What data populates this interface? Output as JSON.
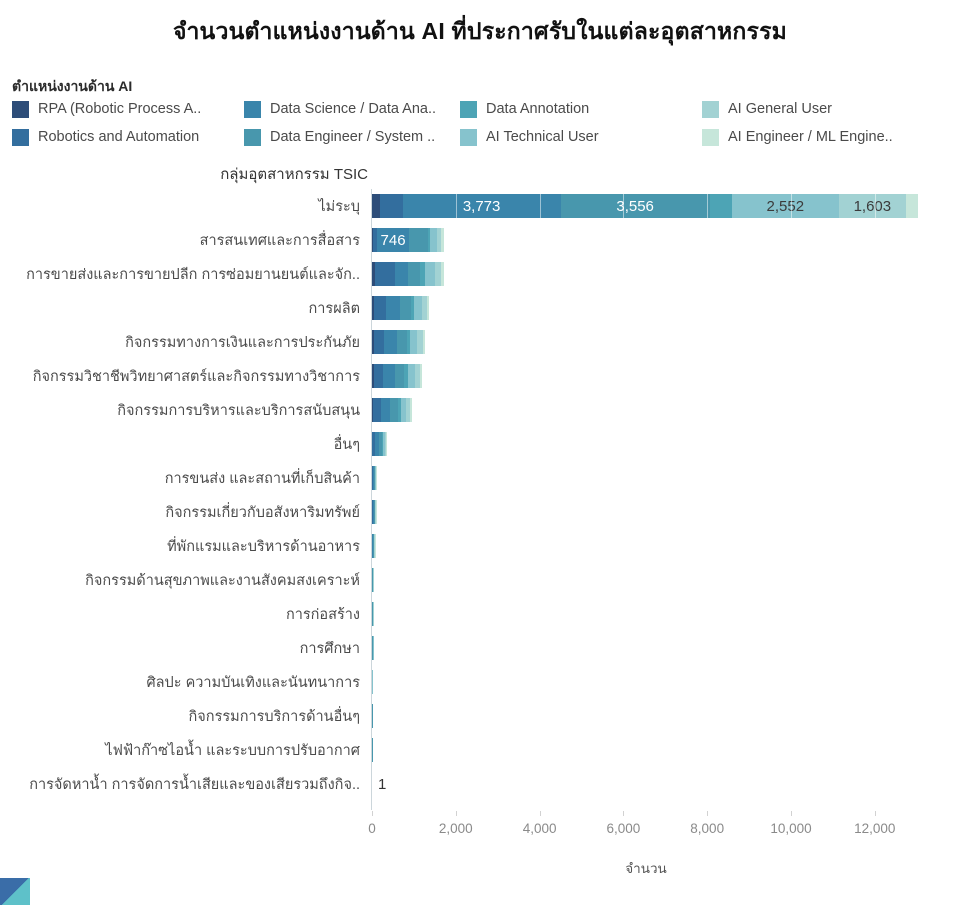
{
  "legend": {
    "title": "ตำแหน่งงานด้าน AI",
    "items": [
      {
        "label": "RPA (Robotic Process A..",
        "color": "#2d4d79"
      },
      {
        "label": "Robotics and Automation",
        "color": "#336e9e"
      },
      {
        "label": "Data Science / Data Ana..",
        "color": "#3a85ab"
      },
      {
        "label": "Data Engineer / System ..",
        "color": "#4897ad"
      },
      {
        "label": "Data Annotation",
        "color": "#4da4b5"
      },
      {
        "label": "AI Technical User",
        "color": "#86c3cd"
      },
      {
        "label": "AI General User",
        "color": "#a2d2d3"
      },
      {
        "label": "AI Engineer / ML Engine..",
        "color": "#c6e6da"
      }
    ]
  },
  "chart_data": {
    "type": "bar",
    "orientation": "horizontal-stacked",
    "title": "จำนวนตำแหน่งงานด้าน AI ที่ประกาศรับในแต่ละอุตสาหกรรม",
    "group_label": "กลุ่มอุตสาหกรรม TSIC",
    "xlabel": "จำนวน",
    "xlim": [
      0,
      13100
    ],
    "x_ticks": [
      {
        "value": 0,
        "label": "0"
      },
      {
        "value": 2000,
        "label": "2,000"
      },
      {
        "value": 4000,
        "label": "4,000"
      },
      {
        "value": 6000,
        "label": "6,000"
      },
      {
        "value": 8000,
        "label": "8,000"
      },
      {
        "value": 10000,
        "label": "10,000"
      },
      {
        "value": 12000,
        "label": "12,000"
      }
    ],
    "series_names": [
      "RPA (Robotic Process A..",
      "Robotics and Automation",
      "Data Science / Data Ana..",
      "Data Engineer / System ..",
      "Data Annotation",
      "AI Technical User",
      "AI General User",
      "AI Engineer / ML Engine.."
    ],
    "rows": [
      {
        "category": "ไม่ระบุ",
        "values": [
          180,
          550,
          3773,
          3556,
          530,
          2552,
          1603,
          290
        ],
        "segment_labels": {
          "2": "3,773",
          "3": "3,556",
          "5": "2,552",
          "6": "1,603"
        }
      },
      {
        "category": "สารสนเทศและการสื่อสาร",
        "values": [
          30,
          100,
          746,
          450,
          70,
          150,
          100,
          80
        ],
        "segment_labels": {
          "2": "746"
        }
      },
      {
        "category": "การขายส่งและการขายปลีก การซ่อมยานยนต์และจัก..",
        "values": [
          60,
          480,
          330,
          280,
          120,
          230,
          160,
          70
        ],
        "segment_labels": {}
      },
      {
        "category": "การผลิต",
        "values": [
          50,
          280,
          330,
          260,
          90,
          180,
          120,
          60
        ],
        "segment_labels": {}
      },
      {
        "category": "กิจกรรมทางการเงินและการประกันภัย",
        "values": [
          40,
          250,
          300,
          240,
          80,
          170,
          130,
          60
        ],
        "segment_labels": {}
      },
      {
        "category": "กิจกรรมวิชาชีพวิทยาศาสตร์และกิจกรรมทางวิชาการ",
        "values": [
          40,
          220,
          280,
          230,
          80,
          170,
          120,
          60
        ],
        "segment_labels": {}
      },
      {
        "category": "กิจกรรมการบริหารและบริการสนับสนุน",
        "values": [
          30,
          180,
          230,
          180,
          70,
          130,
          90,
          50
        ],
        "segment_labels": {}
      },
      {
        "category": "อื่นๆ",
        "values": [
          10,
          60,
          90,
          70,
          25,
          45,
          25,
          15
        ],
        "segment_labels": {}
      },
      {
        "category": "การขนส่ง และสถานที่เก็บสินค้า",
        "values": [
          3,
          18,
          28,
          20,
          8,
          12,
          7,
          4
        ],
        "segment_labels": {}
      },
      {
        "category": "กิจกรรมเกี่ยวกับอสังหาริมทรัพย์",
        "values": [
          3,
          17,
          26,
          19,
          8,
          11,
          7,
          4
        ],
        "segment_labels": {}
      },
      {
        "category": "ที่พักแรมและบริหารด้านอาหาร",
        "values": [
          2,
          10,
          18,
          15,
          6,
          9,
          6,
          4
        ],
        "segment_labels": {}
      },
      {
        "category": "กิจกรรมด้านสุขภาพและงานสังคมสงเคราะห์",
        "values": [
          1,
          4,
          7,
          5,
          2,
          3,
          2,
          1
        ],
        "segment_labels": {}
      },
      {
        "category": "การก่อสร้าง",
        "values": [
          1,
          4,
          7,
          5,
          2,
          3,
          2,
          1
        ],
        "segment_labels": {}
      },
      {
        "category": "การศึกษา",
        "values": [
          1,
          3,
          6,
          4,
          2,
          2,
          1,
          1
        ],
        "segment_labels": {}
      },
      {
        "category": "ศิลปะ ความบันเทิงและนันทนาการ",
        "values": [
          0,
          3,
          5,
          3,
          1,
          2,
          1,
          0
        ],
        "segment_labels": {}
      },
      {
        "category": "กิจกรรมการบริการด้านอื่นๆ",
        "values": [
          0,
          2,
          4,
          3,
          1,
          1,
          1,
          0
        ],
        "segment_labels": {}
      },
      {
        "category": "ไฟฟ้าก๊าซไอน้ำ และระบบการปรับอากาศ",
        "values": [
          0,
          2,
          3,
          2,
          1,
          1,
          1,
          0
        ],
        "segment_labels": {}
      },
      {
        "category": "การจัดหาน้ำ การจัดการน้ำเสียและของเสียรวมถึงกิจ..",
        "values": [
          0,
          0,
          1,
          0,
          0,
          0,
          0,
          0
        ],
        "segment_labels": {},
        "outside_label": "1"
      }
    ]
  }
}
